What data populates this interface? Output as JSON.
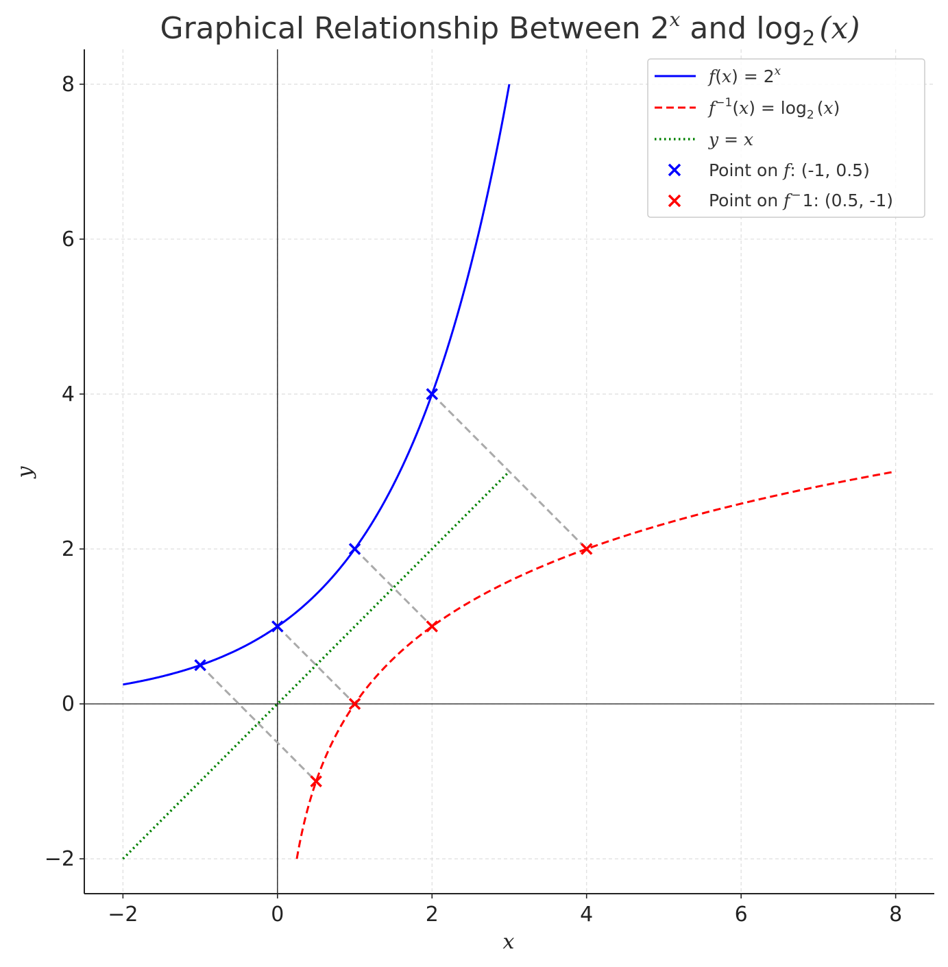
{
  "chart_data": {
    "type": "line",
    "title": {
      "main": "Graphical Relationship Between 2",
      "main_sup": "x",
      "mid": " and log",
      "mid_sub": "2",
      "end": "(x)"
    },
    "xlabel": "x",
    "ylabel": "y",
    "xlim": [
      -2.5,
      8.5
    ],
    "ylim": [
      -2.45,
      8.45
    ],
    "xticks": [
      -2,
      0,
      2,
      4,
      6,
      8
    ],
    "yticks": [
      -2,
      0,
      2,
      4,
      6,
      8
    ],
    "xtick_labels": [
      "−2",
      "0",
      "2",
      "4",
      "6",
      "8"
    ],
    "ytick_labels": [
      "−2",
      "0",
      "2",
      "4",
      "6",
      "8"
    ],
    "grid": true,
    "legend_position": "top-right",
    "series": [
      {
        "name": "f(x) = 2^x",
        "function": "2^x",
        "x_range": [
          -2,
          3
        ],
        "style": "solid",
        "color": "#0000ff"
      },
      {
        "name": "f^{-1}(x) = log_2(x)",
        "function": "log2(x)",
        "x_range": [
          0.25,
          8
        ],
        "style": "dashed",
        "color": "#ff0000"
      },
      {
        "name": "y = x",
        "function": "x",
        "x_range": [
          -2,
          3
        ],
        "style": "dotted",
        "color": "#008000"
      }
    ],
    "points_f": {
      "name": "Point on f: (-1, 0.5)",
      "color": "#0000ff",
      "marker": "x",
      "points": [
        [
          -1,
          0.5
        ],
        [
          0,
          1
        ],
        [
          1,
          2
        ],
        [
          2,
          4
        ]
      ]
    },
    "points_finv": {
      "name": "Point on f^-1: (0.5, -1)",
      "color": "#ff0000",
      "marker": "x",
      "points": [
        [
          0.5,
          -1
        ],
        [
          1,
          0
        ],
        [
          2,
          1
        ],
        [
          4,
          2
        ]
      ]
    },
    "reflection_lines": {
      "color": "#aaaaaa",
      "style": "dashed",
      "segments": [
        [
          [
            -1,
            0.5
          ],
          [
            0.5,
            -1
          ]
        ],
        [
          [
            0,
            1
          ],
          [
            1,
            0
          ]
        ],
        [
          [
            1,
            2
          ],
          [
            2,
            1
          ]
        ],
        [
          [
            2,
            4
          ],
          [
            4,
            2
          ]
        ]
      ]
    },
    "legend": {
      "entries": [
        {
          "id": "f",
          "parts": [
            [
              "f",
              true
            ],
            [
              "(",
              false
            ],
            [
              "x",
              true
            ],
            [
              ") = 2",
              false
            ]
          ],
          "sup": "x"
        },
        {
          "id": "finv",
          "parts": [
            [
              "f",
              true
            ]
          ],
          "sup": "−1",
          "rest": [
            [
              "(",
              false
            ],
            [
              "x",
              true
            ],
            [
              ") = log",
              false
            ]
          ],
          "sub": "2",
          "tail": [
            [
              "(",
              false
            ],
            [
              "x",
              true
            ],
            [
              ")",
              false
            ]
          ]
        },
        {
          "id": "yx",
          "parts": [
            [
              "y",
              true
            ],
            [
              " = ",
              false
            ],
            [
              "x",
              true
            ]
          ]
        },
        {
          "id": "pf",
          "parts": [
            [
              "Point on ",
              false
            ],
            [
              "f",
              true
            ],
            [
              ": (-1, 0.5)",
              false
            ]
          ]
        },
        {
          "id": "pfinv",
          "parts": [
            [
              "Point on ",
              false
            ],
            [
              "f",
              true
            ]
          ],
          "sup": "−",
          "rest": [
            [
              "1: (0.5, -1)",
              false
            ]
          ]
        }
      ]
    }
  }
}
